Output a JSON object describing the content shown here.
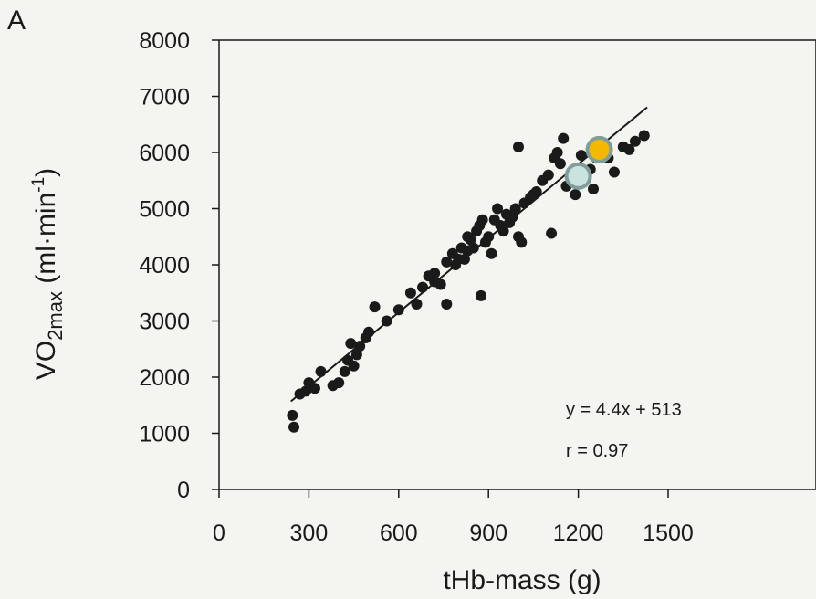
{
  "panel_label": "A",
  "colors": {
    "background": "#f4f4f1",
    "ink": "#1a1a1a",
    "highlight_yellow": "#f5b800",
    "highlight_teal": "#c9e3df",
    "marker_ring": "#7f9e9a"
  },
  "chart_data": {
    "type": "scatter",
    "title": "",
    "xlabel": "tHb-mass (g)",
    "ylabel_main": "VO",
    "ylabel_sub": "2max",
    "ylabel_units": " (ml·min",
    "ylabel_sup": "-1",
    "ylabel_close": ")",
    "xlim": [
      0,
      1500
    ],
    "ylim": [
      0,
      8000
    ],
    "x_ticks": [
      0,
      300,
      600,
      900,
      1200,
      1500
    ],
    "y_ticks": [
      0,
      1000,
      2000,
      3000,
      4000,
      5000,
      6000,
      7000,
      8000
    ],
    "grid": false,
    "annotation": {
      "equation": "y = 4.4x + 513",
      "r": "r = 0.97"
    },
    "regression": {
      "slope": 4.4,
      "intercept": 513,
      "x_range": [
        240,
        1430
      ]
    },
    "highlighted_points": [
      {
        "x": 1270,
        "y": 6050,
        "color": "#f5b800"
      },
      {
        "x": 1200,
        "y": 5580,
        "color": "#c9e3df"
      }
    ],
    "points": [
      [
        245,
        1320
      ],
      [
        250,
        1110
      ],
      [
        270,
        1700
      ],
      [
        290,
        1750
      ],
      [
        300,
        1900
      ],
      [
        320,
        1800
      ],
      [
        340,
        2100
      ],
      [
        380,
        1850
      ],
      [
        400,
        1900
      ],
      [
        420,
        2100
      ],
      [
        430,
        2300
      ],
      [
        440,
        2600
      ],
      [
        450,
        2200
      ],
      [
        460,
        2400
      ],
      [
        470,
        2550
      ],
      [
        490,
        2700
      ],
      [
        500,
        2800
      ],
      [
        520,
        3250
      ],
      [
        560,
        3000
      ],
      [
        600,
        3200
      ],
      [
        640,
        3500
      ],
      [
        660,
        3300
      ],
      [
        680,
        3600
      ],
      [
        700,
        3800
      ],
      [
        720,
        3700
      ],
      [
        740,
        3650
      ],
      [
        760,
        3300
      ],
      [
        780,
        4200
      ],
      [
        790,
        4000
      ],
      [
        810,
        4300
      ],
      [
        820,
        4100
      ],
      [
        830,
        4500
      ],
      [
        840,
        4450
      ],
      [
        850,
        4300
      ],
      [
        860,
        4600
      ],
      [
        870,
        4700
      ],
      [
        875,
        3450
      ],
      [
        880,
        4800
      ],
      [
        890,
        4400
      ],
      [
        900,
        4500
      ],
      [
        910,
        4200
      ],
      [
        920,
        4800
      ],
      [
        930,
        5000
      ],
      [
        940,
        4700
      ],
      [
        950,
        4600
      ],
      [
        960,
        4900
      ],
      [
        970,
        4750
      ],
      [
        980,
        4850
      ],
      [
        990,
        5000
      ],
      [
        1000,
        4500
      ],
      [
        1010,
        4400
      ],
      [
        1020,
        5100
      ],
      [
        1040,
        5200
      ],
      [
        1060,
        5300
      ],
      [
        1080,
        5500
      ],
      [
        1100,
        5600
      ],
      [
        1110,
        4560
      ],
      [
        1120,
        5900
      ],
      [
        1140,
        5800
      ],
      [
        1150,
        6250
      ],
      [
        1160,
        5400
      ],
      [
        1180,
        5500
      ],
      [
        1190,
        5250
      ],
      [
        1240,
        5700
      ],
      [
        1250,
        5350
      ],
      [
        1260,
        5900
      ],
      [
        1300,
        5900
      ],
      [
        1320,
        5650
      ],
      [
        1350,
        6100
      ],
      [
        1370,
        6050
      ],
      [
        1390,
        6200
      ],
      [
        1420,
        6300
      ],
      [
        720,
        3850
      ],
      [
        760,
        4050
      ],
      [
        800,
        4100
      ],
      [
        830,
        4250
      ],
      [
        1000,
        6100
      ],
      [
        1050,
        5250
      ],
      [
        1130,
        6000
      ],
      [
        1210,
        5950
      ]
    ]
  }
}
